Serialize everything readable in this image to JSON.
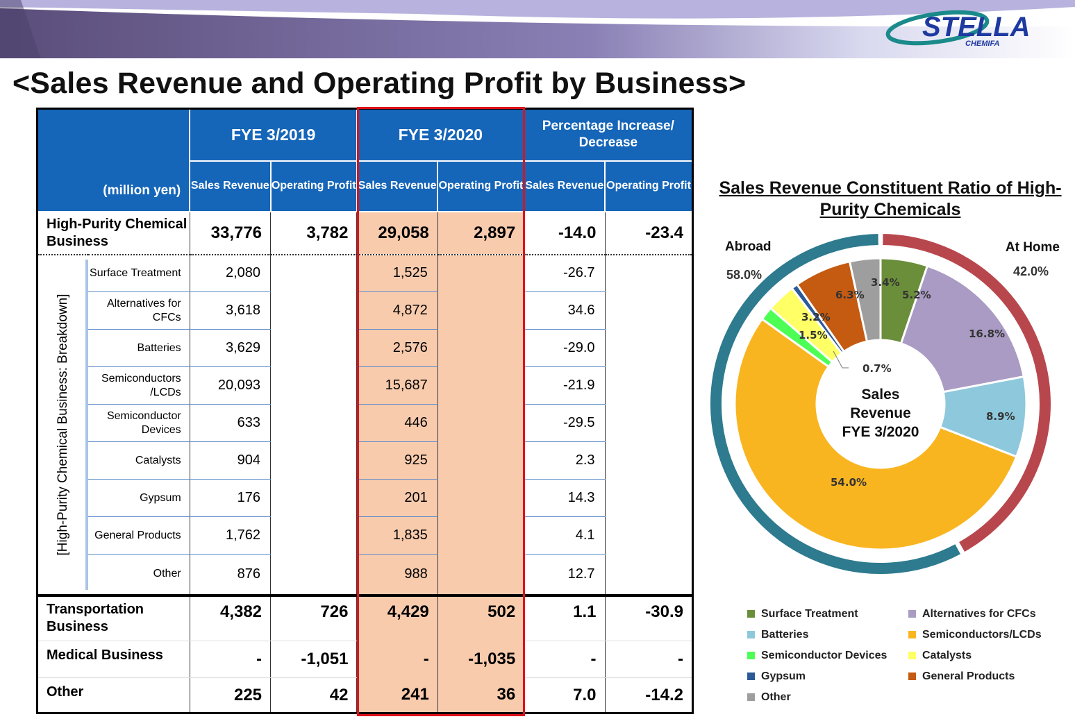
{
  "page_title": "<Sales Revenue and Operating Profit by Business>",
  "logo": {
    "brand": "STELLA",
    "sub": "CHEMIFA"
  },
  "table": {
    "unit": "(million yen)",
    "periods": [
      "FYE 3/2019",
      "FYE 3/2020",
      "Percentage Increase/ Decrease"
    ],
    "sub_headers": [
      "Sales Revenue",
      "Operating Profit"
    ],
    "side_label": "[High-Purity Chemical Business: Breakdown]",
    "hp": {
      "label": "High-Purity Chemical Business",
      "values": [
        "33,776",
        "3,782",
        "29,058",
        "2,897",
        "-14.0",
        "-23.4"
      ]
    },
    "breakdown": [
      {
        "label": "Surface Treatment",
        "sales19": "2,080",
        "sales20": "1,525",
        "pct": "-26.7"
      },
      {
        "label": "Alternatives for CFCs",
        "sales19": "3,618",
        "sales20": "4,872",
        "pct": "34.6"
      },
      {
        "label": "Batteries",
        "sales19": "3,629",
        "sales20": "2,576",
        "pct": "-29.0"
      },
      {
        "label": "Semiconductors /LCDs",
        "sales19": "20,093",
        "sales20": "15,687",
        "pct": "-21.9"
      },
      {
        "label": "Semiconductor Devices",
        "sales19": "633",
        "sales20": "446",
        "pct": "-29.5"
      },
      {
        "label": "Catalysts",
        "sales19": "904",
        "sales20": "925",
        "pct": "2.3"
      },
      {
        "label": "Gypsum",
        "sales19": "176",
        "sales20": "201",
        "pct": "14.3"
      },
      {
        "label": "General Products",
        "sales19": "1,762",
        "sales20": "1,835",
        "pct": "4.1"
      },
      {
        "label": "Other",
        "sales19": "876",
        "sales20": "988",
        "pct": "12.7"
      }
    ],
    "others": [
      {
        "label": "Transportation Business",
        "values": [
          "4,382",
          "726",
          "4,429",
          "502",
          "1.1",
          "-30.9"
        ]
      },
      {
        "label": "Medical Business",
        "values": [
          "-",
          "-1,051",
          "-",
          "-1,035",
          "-",
          "-"
        ]
      },
      {
        "label": "Other",
        "values": [
          "225",
          "42",
          "241",
          "36",
          "7.0",
          "-14.2"
        ]
      }
    ]
  },
  "chart_data": {
    "type": "pie",
    "title": "Sales Revenue Constituent Ratio of High-Purity Chemicals",
    "center_label": [
      "Sales",
      "Revenue",
      "FYE 3/2020"
    ],
    "slices": [
      {
        "name": "Surface Treatment",
        "value": 5.2,
        "label": "5.2%",
        "color": "#6b8e3b"
      },
      {
        "name": "Alternatives for CFCs",
        "value": 16.8,
        "label": "16.8%",
        "color": "#a99bc3"
      },
      {
        "name": "Batteries",
        "value": 8.9,
        "label": "8.9%",
        "color": "#8ec8dc"
      },
      {
        "name": "Semiconductors/LCDs",
        "value": 54.0,
        "label": "54.0%",
        "color": "#f9b520"
      },
      {
        "name": "Semiconductor Devices",
        "value": 1.5,
        "label": "1.5%",
        "color": "#4dff55"
      },
      {
        "name": "Catalysts",
        "value": 3.2,
        "label": "3.2%",
        "color": "#ffff66"
      },
      {
        "name": "Gypsum",
        "value": 0.7,
        "label": "0.7%",
        "color": "#2c5a96"
      },
      {
        "name": "General Products",
        "value": 6.3,
        "label": "6.3%",
        "color": "#c55a11"
      },
      {
        "name": "Other",
        "value": 3.4,
        "label": "3.4%",
        "color": "#9e9e9e"
      }
    ],
    "outer_ring": [
      {
        "name": "At Home",
        "value": 42.0,
        "label": "42.0%",
        "color": "#b8474d"
      },
      {
        "name": "Abroad",
        "value": 58.0,
        "label": "58.0%",
        "color": "#2e7a8e"
      }
    ],
    "legend": [
      "Surface Treatment",
      "Alternatives for CFCs",
      "Batteries",
      "Semiconductors/LCDs",
      "Semiconductor Devices",
      "Catalysts",
      "Gypsum",
      "General Products",
      "Other"
    ]
  }
}
